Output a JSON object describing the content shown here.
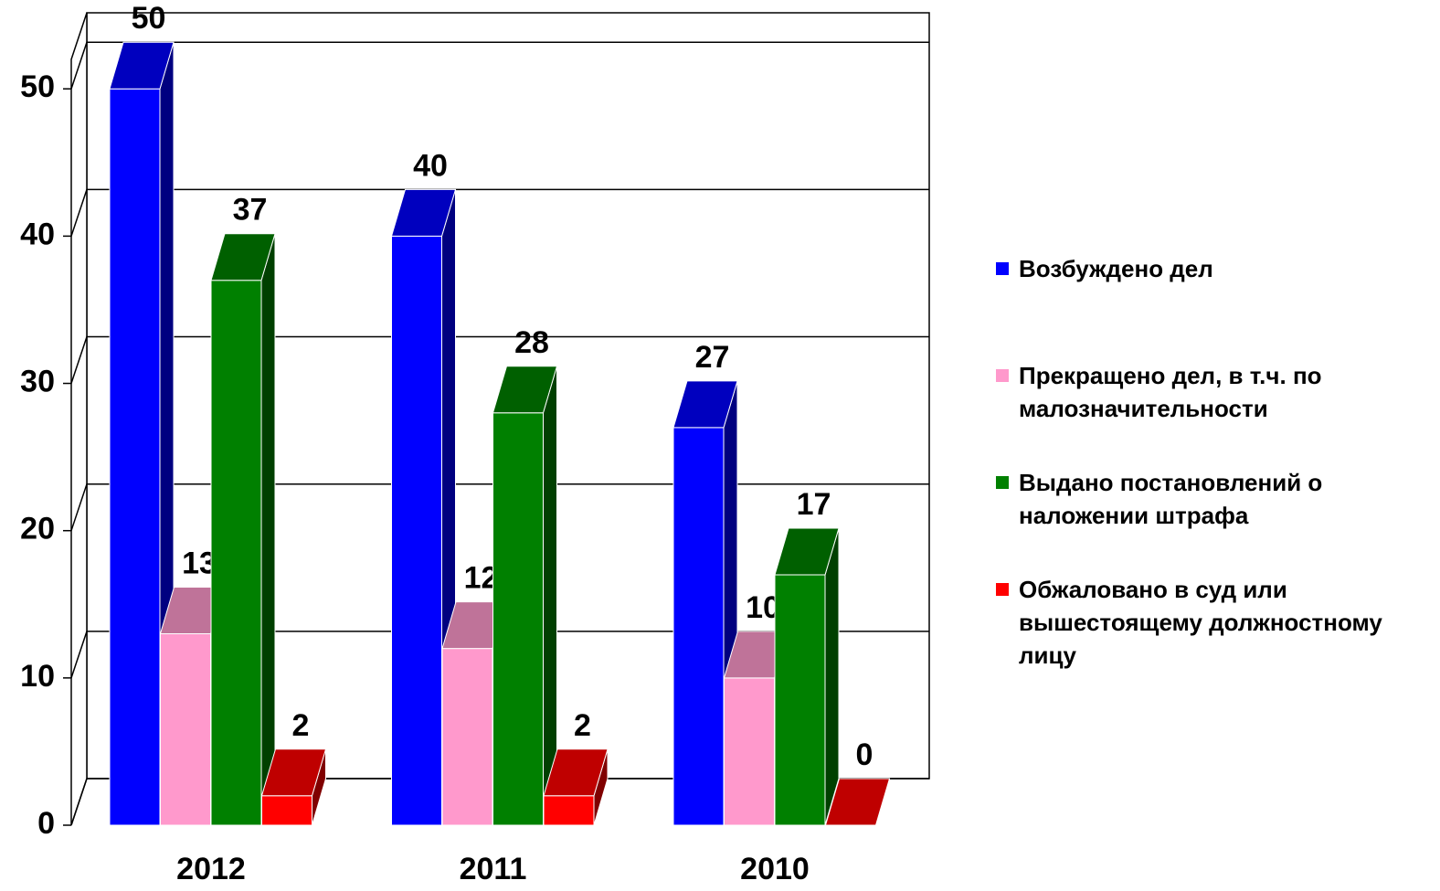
{
  "chart_data": {
    "type": "bar3d",
    "categories": [
      "2012",
      "2011",
      "2010"
    ],
    "series": [
      {
        "name": "Возбуждено дел",
        "color": "#0000ff",
        "values": [
          50,
          40,
          27
        ]
      },
      {
        "name": "Прекращено дел, в т.ч. по малозначительности",
        "color": "#ff99cc",
        "values": [
          13,
          12,
          10
        ]
      },
      {
        "name": "Выдано постановлений о наложении штрафа",
        "color": "#008000",
        "values": [
          37,
          28,
          17
        ]
      },
      {
        "name": "Обжаловано в суд или вышестоящему должностному лицу",
        "color": "#ff0000",
        "values": [
          2,
          2,
          0
        ]
      }
    ],
    "ylim": [
      0,
      52
    ],
    "yticks": [
      0,
      10,
      20,
      30,
      40,
      50
    ],
    "grid": true,
    "legend": "right"
  }
}
